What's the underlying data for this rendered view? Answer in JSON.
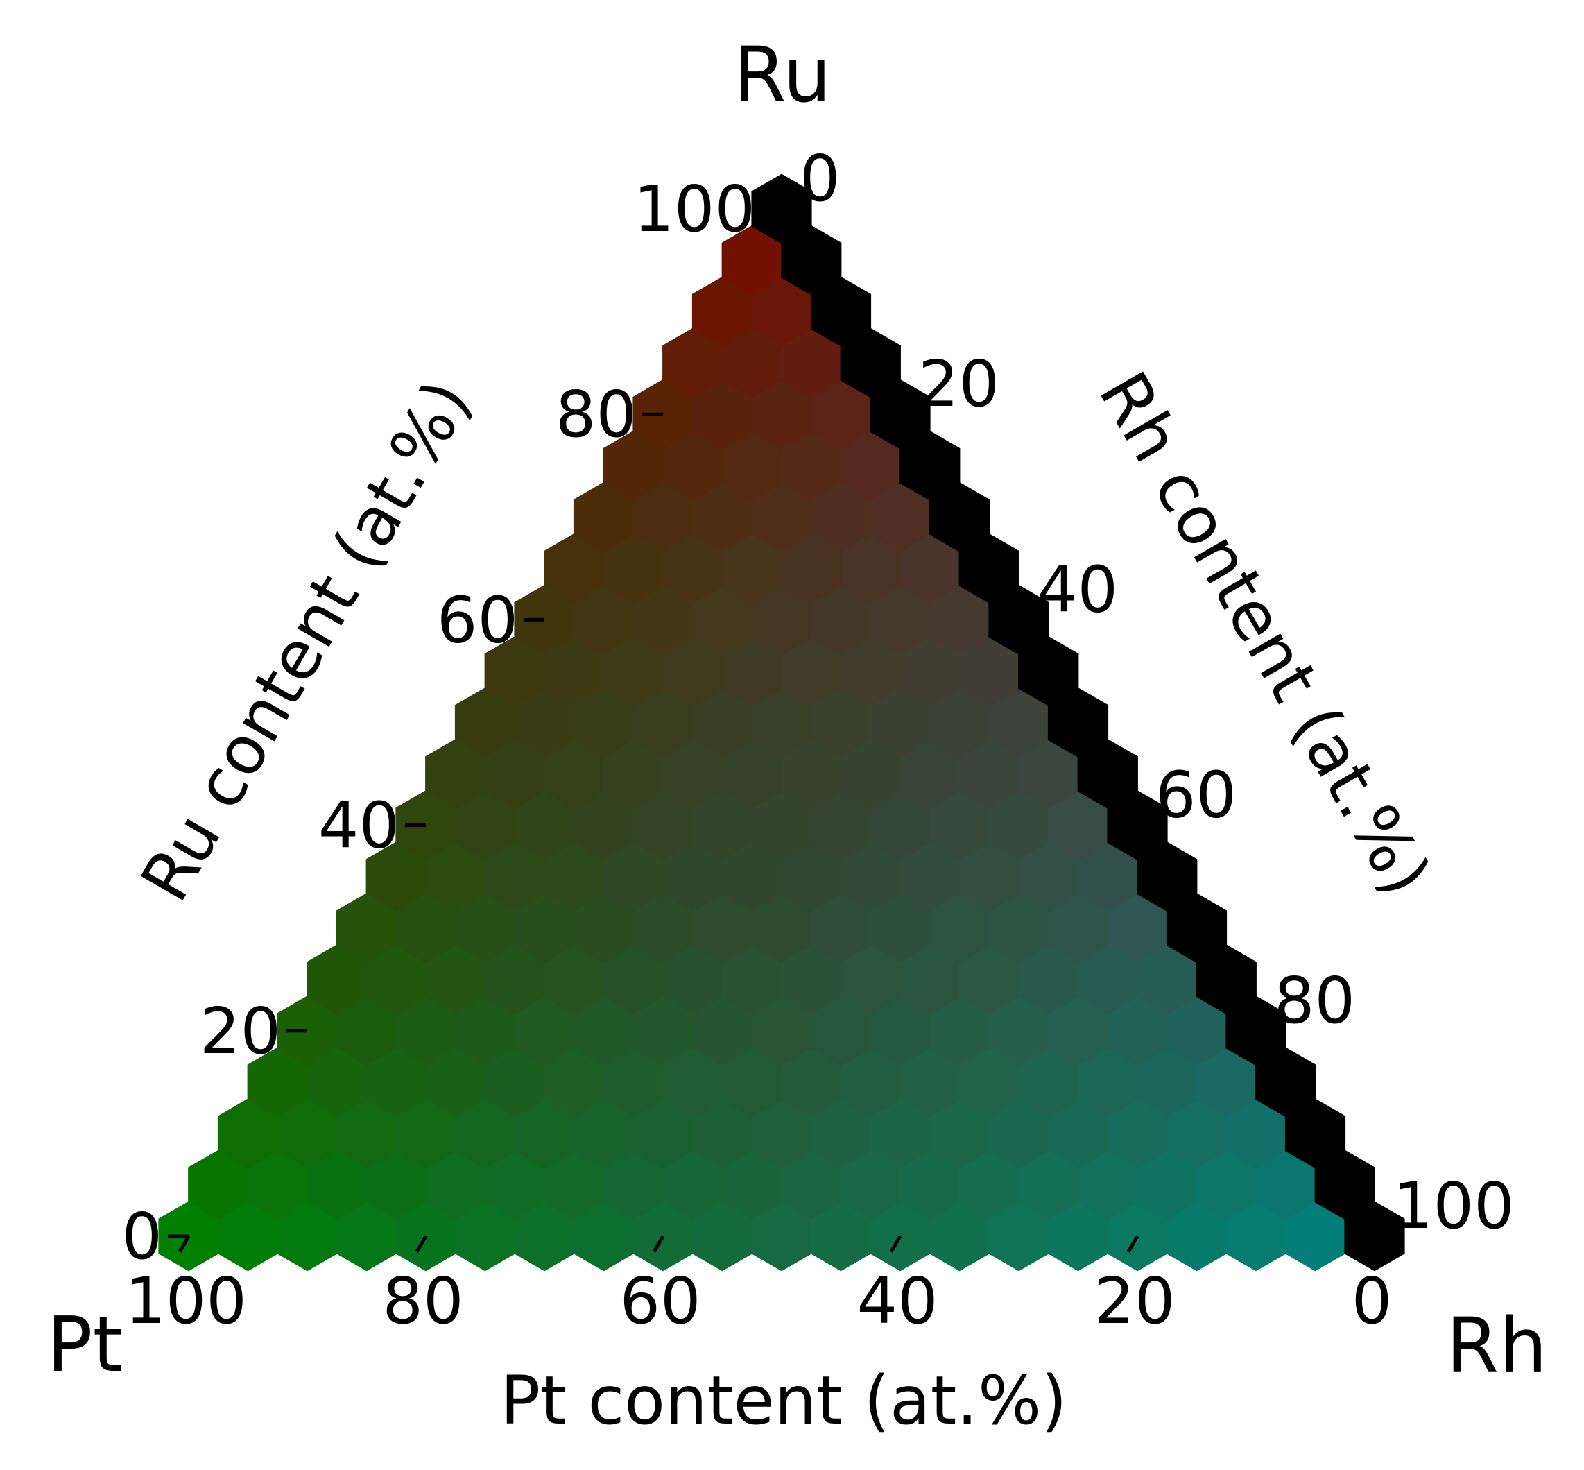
{
  "chart_data": {
    "type": "ternary-hexbin",
    "corners": {
      "top": "Ru",
      "left": "Pt",
      "right": "Rh"
    },
    "axes": {
      "bottom": {
        "component": "Pt",
        "label": "Pt content (at.%)",
        "ticks": [
          "100",
          "80",
          "60",
          "40",
          "20",
          "0"
        ],
        "range": [
          100,
          0
        ]
      },
      "left": {
        "component": "Ru",
        "label": "Ru content (at.%)",
        "ticks": [
          "0",
          "20",
          "40",
          "60",
          "80",
          "100"
        ],
        "range": [
          0,
          100
        ]
      },
      "right": {
        "component": "Rh",
        "label": "Rh content (at.%)",
        "ticks": [
          "0",
          "20",
          "40",
          "60",
          "80",
          "100"
        ],
        "range": [
          0,
          100
        ]
      }
    },
    "grid_step_at_percent": 5,
    "color_encoding": "RGB mixed by composition; Ru-rich = red, Pt-rich = green, Rh-rich = teal; Pt = 0 edge = black",
    "colors": {
      "ru_rich": "#7a0a00",
      "pt_rich": "#007f00",
      "rh_rich": "#007f7f",
      "pt_zero_edge": "#000000"
    }
  }
}
